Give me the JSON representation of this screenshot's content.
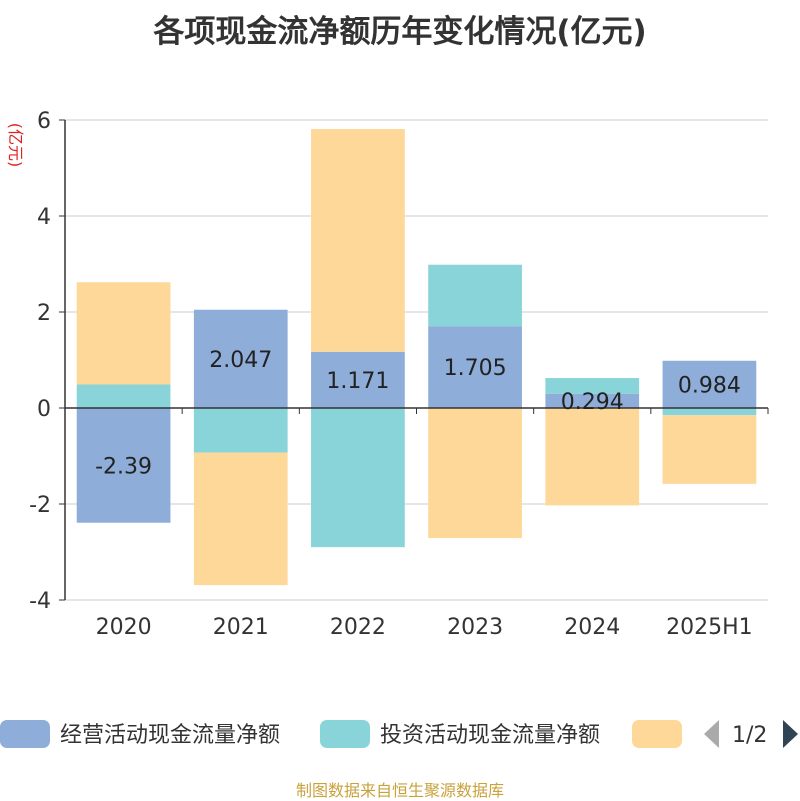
{
  "page": {
    "source": "制图数据来自恒生聚源数据库"
  },
  "chart_data": {
    "type": "bar",
    "stacked": true,
    "title": "各项现金流净额历年变化情况(亿元)",
    "ylabel": "(亿元)",
    "xlabel": "",
    "categories": [
      "2020",
      "2021",
      "2022",
      "2023",
      "2024",
      "2025H1"
    ],
    "ylim": [
      -4,
      6
    ],
    "yticks": [
      -4,
      -2,
      0,
      2,
      4,
      6
    ],
    "grid": true,
    "legend_position": "bottom",
    "series": [
      {
        "name": "经营活动现金流量净额",
        "color": "#8fadd9",
        "values": [
          -2.39,
          2.047,
          1.171,
          1.705,
          0.294,
          0.984
        ],
        "labels": [
          "-2.39",
          "2.047",
          "1.171",
          "1.705",
          "0.294",
          "0.984"
        ]
      },
      {
        "name": "投资活动现金流量净额",
        "color": "#88d4d8",
        "values": [
          0.49,
          -0.93,
          -2.9,
          1.28,
          0.33,
          -0.15
        ]
      },
      {
        "name": "",
        "color": "#fed898",
        "values": [
          2.13,
          -2.76,
          4.64,
          -2.71,
          -2.03,
          -1.43
        ]
      }
    ],
    "legend_page": "1/2"
  }
}
